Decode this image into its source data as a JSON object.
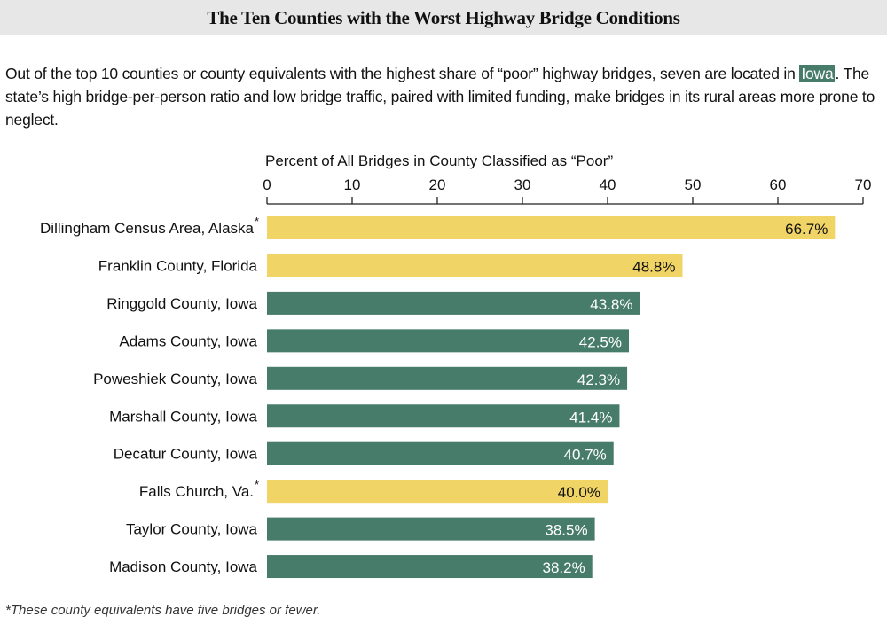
{
  "title": "The Ten Counties with the Worst Highway Bridge Conditions",
  "intro": {
    "before": "Out of the top 10 counties or county equivalents with the highest share of “poor” highway bridges, seven are located in ",
    "highlight": "Iowa",
    "after": ". The state’s high bridge-per-person ratio and low bridge traffic, paired with limited funding, make bridges in its rural areas more prone to neglect."
  },
  "footnote": "*These county equivalents have five bridges or fewer.",
  "colors": {
    "iowa": "#477c6a",
    "other": "#f0d465",
    "title_bg": "#e6e7e6"
  },
  "chart_data": {
    "type": "bar",
    "orientation": "horizontal",
    "xlabel": "Percent of All Bridges in County Classified as “Poor”",
    "xlim": [
      0,
      70
    ],
    "xticks": [
      0,
      10,
      20,
      30,
      40,
      50,
      60,
      70
    ],
    "axis_position": "top",
    "grid": false,
    "categories": [
      "Dillingham Census Area, Alaska",
      "Franklin County, Florida",
      "Ringgold County, Iowa",
      "Adams County, Iowa",
      "Poweshiek County, Iowa",
      "Marshall County, Iowa",
      "Decatur County, Iowa",
      "Falls Church, Va.",
      "Taylor County, Iowa",
      "Madison County, Iowa"
    ],
    "asterisk": [
      true,
      false,
      false,
      false,
      false,
      false,
      false,
      true,
      false,
      false
    ],
    "values": [
      66.7,
      48.8,
      43.8,
      42.5,
      42.3,
      41.4,
      40.7,
      40.0,
      38.5,
      38.2
    ],
    "labels": [
      "66.7%",
      "48.8%",
      "43.8%",
      "42.5%",
      "42.3%",
      "41.4%",
      "40.7%",
      "40.0%",
      "38.5%",
      "38.2%"
    ],
    "is_iowa": [
      false,
      false,
      true,
      true,
      true,
      true,
      true,
      false,
      true,
      true
    ]
  }
}
